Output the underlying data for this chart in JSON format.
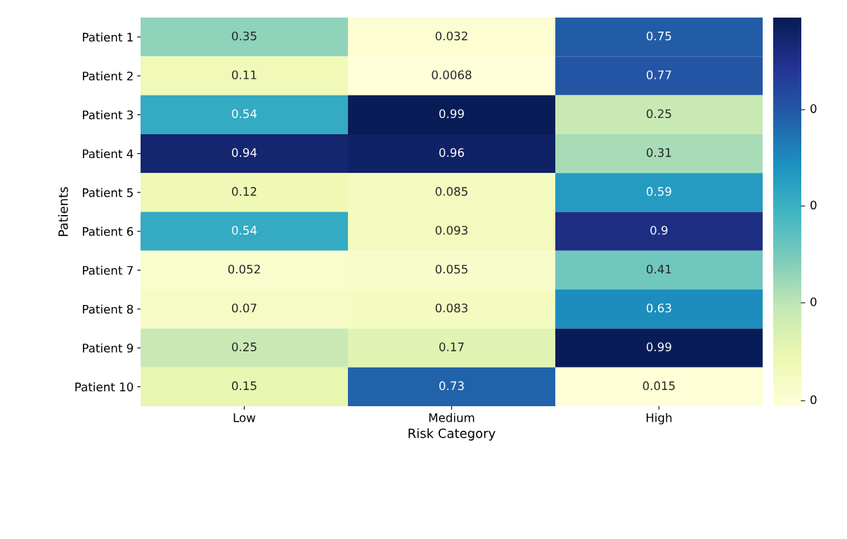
{
  "chart_data": {
    "type": "heatmap",
    "xlabel": "Risk Category",
    "ylabel": "Patients",
    "categories": [
      "Low",
      "Medium",
      "High"
    ],
    "y_categories": [
      "Patient 1",
      "Patient 2",
      "Patient 3",
      "Patient 4",
      "Patient 5",
      "Patient 6",
      "Patient 7",
      "Patient 8",
      "Patient 9",
      "Patient 10"
    ],
    "cells": [
      [
        0.35,
        0.032,
        0.75
      ],
      [
        0.11,
        0.0068,
        0.77
      ],
      [
        0.54,
        0.99,
        0.25
      ],
      [
        0.94,
        0.96,
        0.31
      ],
      [
        0.12,
        0.085,
        0.59
      ],
      [
        0.54,
        0.093,
        0.9
      ],
      [
        0.052,
        0.055,
        0.41
      ],
      [
        0.07,
        0.083,
        0.63
      ],
      [
        0.25,
        0.17,
        0.99
      ],
      [
        0.15,
        0.73,
        0.015
      ]
    ],
    "data_labels": true,
    "annotations": [
      "0",
      "0",
      "0",
      "0"
    ]
  }
}
